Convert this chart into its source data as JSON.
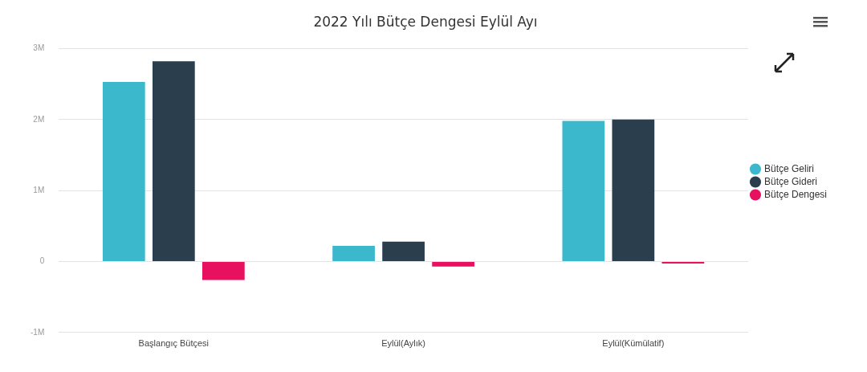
{
  "chart_data": {
    "type": "bar",
    "title": "2022 Yılı Bütçe Dengesi Eylül Ayı",
    "categories": [
      "Başlangıç Bütçesi",
      "Eylül(Aylık)",
      "Eylül(Kümülatif)"
    ],
    "series": [
      {
        "name": "Bütçe Geliri",
        "color": "#3bb8cc",
        "values": [
          2530000,
          220000,
          1980000
        ]
      },
      {
        "name": "Bütçe Gideri",
        "color": "#2b3e4e",
        "values": [
          2820000,
          280000,
          2000000
        ]
      },
      {
        "name": "Bütçe Dengesi",
        "color": "#e8115f",
        "values": [
          -260000,
          -70000,
          -30000
        ]
      }
    ],
    "ylim": [
      -1000000,
      3000000
    ],
    "yticks": [
      {
        "value": -1000000,
        "label": "-1M"
      },
      0,
      {
        "value": 1000000,
        "label": "1M"
      },
      {
        "value": 2000000,
        "label": "2M"
      },
      {
        "value": 3000000,
        "label": "3M"
      }
    ],
    "grid": "y",
    "legend": "right"
  }
}
